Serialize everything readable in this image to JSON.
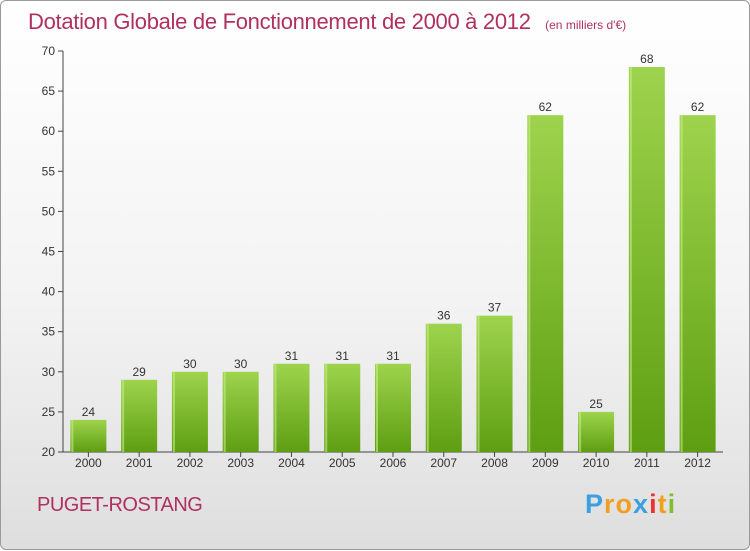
{
  "header": {
    "title": "Dotation Globale de Fonctionnement de 2000 à 2012",
    "subtitle": "(en milliers d'€)"
  },
  "footer": {
    "commune": "PUGET-ROSTANG",
    "logo_letters": [
      "P",
      "r",
      "o",
      "x",
      "i",
      "t",
      "i"
    ]
  },
  "colors": {
    "title": "#b03060",
    "bar_light": "#9ed44d",
    "bar_dark": "#5e9e12",
    "logo": [
      "#3aa0e0",
      "#f0a020",
      "#f0a020",
      "#3aa0e0",
      "#ee3030",
      "#f0a020",
      "#80c030"
    ]
  },
  "chart_data": {
    "type": "bar",
    "categories": [
      "2000",
      "2001",
      "2002",
      "2003",
      "2004",
      "2005",
      "2006",
      "2007",
      "2008",
      "2009",
      "2010",
      "2011",
      "2012"
    ],
    "values": [
      24,
      29,
      30,
      30,
      31,
      31,
      31,
      36,
      37,
      62,
      25,
      68,
      62
    ],
    "ylim": [
      20,
      70
    ],
    "yticks": [
      20,
      25,
      30,
      35,
      40,
      45,
      50,
      55,
      60,
      65,
      70
    ],
    "xlabel": "",
    "ylabel": "",
    "grid": false
  }
}
